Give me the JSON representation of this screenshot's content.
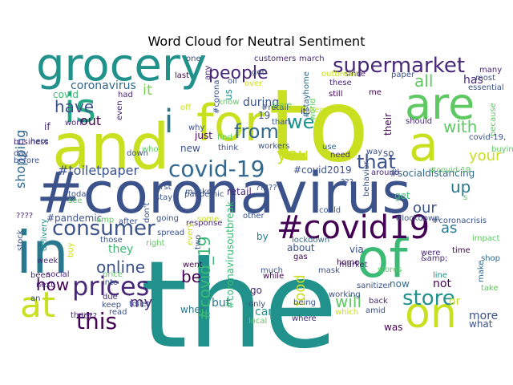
{
  "chart_data": {
    "type": "wordcloud",
    "title": "Word Cloud for Neutral Sentiment",
    "words": [
      {
        "text": "the",
        "color": "#21918c"
      },
      {
        "text": "#coronavirus",
        "color": "#3b528b"
      },
      {
        "text": "to",
        "color": "#c8e020"
      },
      {
        "text": "and",
        "color": "#c8e020"
      },
      {
        "text": "grocery",
        "color": "#21918c"
      },
      {
        "text": "in",
        "color": "#2a788e"
      },
      {
        "text": "of",
        "color": "#3bba75"
      },
      {
        "text": "is",
        "color": "#22a884"
      },
      {
        "text": "a",
        "color": "#c8e020"
      },
      {
        "text": "for",
        "color": "#c8e020"
      },
      {
        "text": "are",
        "color": "#5ec962"
      },
      {
        "text": "on",
        "color": "#c8e020"
      },
      {
        "text": "#covid19",
        "color": "#440154"
      },
      {
        "text": "supermarket",
        "color": "#482878"
      },
      {
        "text": "at",
        "color": "#c8e020"
      },
      {
        "text": "covid-19",
        "color": "#31688e"
      },
      {
        "text": "prices",
        "color": "#482878"
      },
      {
        "text": "consumer",
        "color": "#3b528b"
      },
      {
        "text": "store",
        "color": "#21918c"
      },
      {
        "text": "this",
        "color": "#440154"
      },
      {
        "text": "i",
        "color": "#2a788e"
      },
      {
        "text": "have",
        "color": "#3b528b"
      },
      {
        "text": "with",
        "color": "#5ec962"
      },
      {
        "text": "you",
        "color": "#c8e020"
      },
      {
        "text": "from",
        "color": "#31688e"
      },
      {
        "text": "people",
        "color": "#482878"
      },
      {
        "text": "your",
        "color": "#c8e020"
      },
      {
        "text": "online",
        "color": "#3b528b"
      },
      {
        "text": "how",
        "color": "#440154"
      },
      {
        "text": "shopping",
        "color": "#31688e"
      },
      {
        "text": "#toiletpaper",
        "color": "#3b528b"
      },
      {
        "text": "#covid_19",
        "color": "#3bba75"
      },
      {
        "text": "will",
        "color": "#5ec962"
      },
      {
        "text": "we",
        "color": "#21918c"
      },
      {
        "text": "that",
        "color": "#3b528b"
      },
      {
        "text": "up",
        "color": "#2a788e"
      },
      {
        "text": "be",
        "color": "#440154"
      },
      {
        "text": "food",
        "color": "#c8e020"
      },
      {
        "text": "all",
        "color": "#5ec962"
      },
      {
        "text": "our",
        "color": "#3b528b"
      },
      {
        "text": "my",
        "color": "#482878"
      },
      {
        "text": "as",
        "color": "#2a788e"
      },
      {
        "text": "it",
        "color": "#7ad151"
      },
      {
        "text": "out",
        "color": "#440154"
      },
      {
        "text": "has",
        "color": "#482878"
      },
      {
        "text": "during",
        "color": "#3b528b"
      },
      {
        "text": "coronavirus",
        "color": "#31688e"
      },
      {
        "text": "covid",
        "color": "#3bba75"
      },
      {
        "text": "they",
        "color": "#3bba75"
      },
      {
        "text": "or",
        "color": "#c8e020"
      },
      {
        "text": "more",
        "color": "#3b528b"
      },
      {
        "text": "what",
        "color": "#3b528b"
      },
      {
        "text": "not",
        "color": "#440154"
      },
      {
        "text": "but",
        "color": "#2a788e"
      },
      {
        "text": "can",
        "color": "#21918c"
      },
      {
        "text": "#covid2019",
        "color": "#3b528b"
      },
      {
        "text": "#socialdistancing",
        "color": "#31688e"
      },
      {
        "text": "about",
        "color": "#3b528b"
      },
      {
        "text": "via",
        "color": "#3b528b"
      },
      {
        "text": "by",
        "color": "#2a788e"
      },
      {
        "text": "19",
        "color": "#3b528b"
      },
      {
        "text": "us",
        "color": "#21918c"
      },
      {
        "text": "get",
        "color": "#3bba75"
      },
      {
        "text": "if",
        "color": "#482878"
      },
      {
        "text": "just",
        "color": "#440154"
      },
      {
        "text": "new",
        "color": "#3b528b"
      },
      {
        "text": "go",
        "color": "#482878"
      },
      {
        "text": "when",
        "color": "#2a788e"
      },
      {
        "text": "was",
        "color": "#440154"
      },
      {
        "text": "so",
        "color": "#3b528b"
      },
      {
        "text": "now",
        "color": "#31688e"
      },
      {
        "text": "their",
        "color": "#440154"
      },
      {
        "text": "retail",
        "color": "#482878"
      },
      {
        "text": "#coronavirusoutbreak",
        "color": "#3bba75"
      },
      {
        "text": "#pandemic",
        "color": "#3b528b"
      },
      {
        "text": "stock",
        "color": "#3b528b"
      },
      {
        "text": "social",
        "color": "#482878"
      },
      {
        "text": "delivery",
        "color": "#21918c"
      },
      {
        "text": "after",
        "color": "#3b528b"
      },
      {
        "text": "going",
        "color": "#3b528b"
      },
      {
        "text": "due",
        "color": "#482878"
      },
      {
        "text": "only",
        "color": "#3b528b"
      },
      {
        "text": "where",
        "color": "#482878"
      },
      {
        "text": "#coronacrisis",
        "color": "#3b528b"
      },
      {
        "text": "time",
        "color": "#440154"
      },
      {
        "text": "were",
        "color": "#482878"
      },
      {
        "text": "&amp;",
        "color": "#482878"
      },
      {
        "text": "impact",
        "color": "#5ec962"
      },
      {
        "text": "shop",
        "color": "#31688e"
      },
      {
        "text": "take",
        "color": "#5ec962"
      },
      {
        "text": "make",
        "color": "#31688e"
      },
      {
        "text": "line",
        "color": "#21918c"
      },
      {
        "text": "sanitizer",
        "color": "#3b528b"
      },
      {
        "text": "market",
        "color": "#482878"
      },
      {
        "text": "home",
        "color": "#440154"
      },
      {
        "text": "mask",
        "color": "#3b528b"
      },
      {
        "text": "need",
        "color": "#482878"
      },
      {
        "text": "use",
        "color": "#31688e"
      },
      {
        "text": "workers",
        "color": "#3b528b"
      },
      {
        "text": "customers",
        "color": "#482878"
      },
      {
        "text": "march",
        "color": "#482878"
      },
      {
        "text": "paper",
        "color": "#3b528b"
      },
      {
        "text": "most",
        "color": "#3b528b"
      },
      {
        "text": "many",
        "color": "#482878"
      },
      {
        "text": "essential",
        "color": "#3b528b"
      },
      {
        "text": "these",
        "color": "#482878"
      },
      {
        "text": "since",
        "color": "#482878"
      },
      {
        "text": "still",
        "color": "#440154"
      },
      {
        "text": "its",
        "color": "#482878"
      },
      {
        "text": "me",
        "color": "#440154"
      },
      {
        "text": "should",
        "color": "#482878"
      },
      {
        "text": "because",
        "color": "#5ec962"
      },
      {
        "text": "buying",
        "color": "#5ec962"
      },
      {
        "text": "over",
        "color": "#c8e020"
      },
      {
        "text": "oil",
        "color": "#3b528b"
      },
      {
        "text": "got",
        "color": "#3b528b"
      },
      {
        "text": "last",
        "color": "#440154"
      },
      {
        "text": "any",
        "color": "#482878"
      },
      {
        "text": "had",
        "color": "#482878"
      },
      {
        "text": "even",
        "color": "#482878"
      },
      {
        "text": "work",
        "color": "#482878"
      },
      {
        "text": "business",
        "color": "#482878"
      },
      {
        "text": "here",
        "color": "#3b528b"
      },
      {
        "text": "day",
        "color": "#3b528b"
      },
      {
        "text": "before",
        "color": "#3b528b"
      },
      {
        "text": "down",
        "color": "#3b528b"
      },
      {
        "text": "who",
        "color": "#5ec962"
      },
      {
        "text": "off",
        "color": "#c8e020"
      },
      {
        "text": "why",
        "color": "#3b528b"
      },
      {
        "text": "find",
        "color": "#5ec962"
      },
      {
        "text": "than",
        "color": "#3b528b"
      },
      {
        "text": "think",
        "color": "#3b528b"
      },
      {
        "text": "know",
        "color": "#5ec962"
      },
      {
        "text": "#retail",
        "color": "#3b528b"
      },
      {
        "text": "response",
        "color": "#482878"
      },
      {
        "text": "spread",
        "color": "#3b528b"
      },
      {
        "text": "stay",
        "color": "#3b528b"
      },
      {
        "text": "first",
        "color": "#3b528b"
      },
      {
        "text": "masks",
        "color": "#3b528b"
      },
      {
        "text": "went",
        "color": "#440154"
      },
      {
        "text": "some",
        "color": "#c8e020"
      },
      {
        "text": "other",
        "color": "#3b528b"
      },
      {
        "text": "could",
        "color": "#3b528b"
      },
      {
        "text": "gas",
        "color": "#440154"
      },
      {
        "text": "much",
        "color": "#3b528b"
      },
      {
        "text": "while",
        "color": "#440154"
      },
      {
        "text": "local",
        "color": "#5ec962"
      },
      {
        "text": "being",
        "color": "#3b528b"
      },
      {
        "text": "working",
        "color": "#3b528b"
      },
      {
        "text": "back",
        "color": "#482878"
      },
      {
        "text": "amid",
        "color": "#3b528b"
      },
      {
        "text": "which",
        "color": "#c8e020"
      },
      {
        "text": "toilet",
        "color": "#3b528b"
      },
      {
        "text": "lockdown",
        "color": "#31688e"
      },
      {
        "text": "#lockdown",
        "color": "#3b528b"
      },
      {
        "text": "behavior",
        "color": "#3b528b"
      },
      {
        "text": "around",
        "color": "#482878"
      },
      {
        "text": "way",
        "color": "#3b528b"
      },
      {
        "text": "them",
        "color": "#c8e020"
      },
      {
        "text": "#stayhome",
        "color": "#31688e"
      },
      {
        "text": "world",
        "color": "#5ec962"
      },
      {
        "text": "one",
        "color": "#3b528b"
      },
      {
        "text": "outbreak",
        "color": "#c8e020"
      },
      {
        "text": "store",
        "color": "#5ec962"
      },
      {
        "text": "#corona",
        "color": "#3b528b"
      },
      {
        "text": "price",
        "color": "#5ec962"
      },
      {
        "text": "into",
        "color": "#3b528b"
      },
      {
        "text": "keep",
        "color": "#3b528b"
      },
      {
        "text": "read",
        "color": "#3b528b"
      },
      {
        "text": "there",
        "color": "#482878"
      },
      {
        "text": "do??",
        "color": "#482878"
      },
      {
        "text": "an",
        "color": "#3b528b"
      },
      {
        "text": "been",
        "color": "#482878"
      },
      {
        "text": "week",
        "color": "#482878"
      },
      {
        "text": "next",
        "color": "#482878"
      },
      {
        "text": "????",
        "color": "#482878"
      },
      {
        "text": "today",
        "color": "#3b528b"
      },
      {
        "text": "see",
        "color": "#5ec962"
      },
      {
        "text": "right",
        "color": "#5ec962"
      },
      {
        "text": "those",
        "color": "#3b528b"
      },
      {
        "text": "don't",
        "color": "#3b528b"
      },
      {
        "text": "two",
        "color": "#3b528b"
      },
      {
        "text": "every",
        "color": "#c8e020"
      },
      {
        "text": "buy",
        "color": "#c8e020"
      },
      {
        "text": "covid-19,",
        "color": "#3b528b"
      },
      {
        "text": "#covid-19",
        "color": "#5ec962"
      },
      {
        "text": "stores",
        "color": "#5ec962"
      },
      {
        "text": "pandemic",
        "color": "#3b528b"
      },
      {
        "text": "?????",
        "color": "#3b528b"
      },
      {
        "text": "???",
        "color": "#3b528b"
      },
      {
        "text": "amp",
        "color": "#5ec962"
      },
      {
        "text": "s",
        "color": "#5ec962"
      },
      {
        "text": "?",
        "color": "#5ec962"
      }
    ]
  }
}
